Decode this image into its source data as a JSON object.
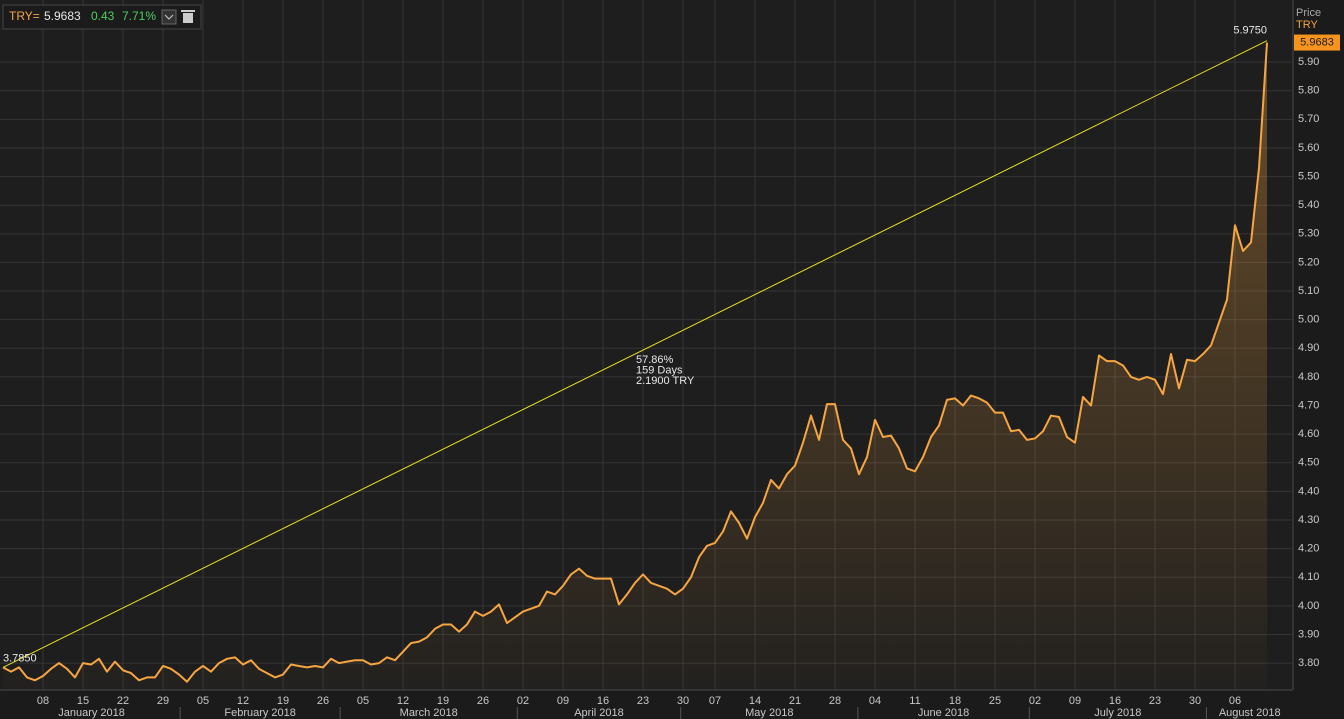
{
  "header": {
    "symbol": "TRY=",
    "last": "5.9683",
    "change": "0.43",
    "change_pct": "7.71%"
  },
  "chart_data": {
    "type": "line",
    "y_axis_title": "Price",
    "last_price_label": "5.9683",
    "categories": [
      null,
      null,
      null,
      null,
      null,
      "08",
      null,
      null,
      null,
      null,
      "15",
      null,
      null,
      null,
      null,
      "22",
      null,
      null,
      null,
      null,
      "29",
      null,
      null,
      null,
      null,
      "05",
      null,
      null,
      null,
      null,
      "12",
      null,
      null,
      null,
      null,
      "19",
      null,
      null,
      null,
      null,
      "26",
      null,
      null,
      null,
      null,
      "05",
      null,
      null,
      null,
      null,
      "12",
      null,
      null,
      null,
      null,
      "19",
      null,
      null,
      null,
      null,
      "26",
      null,
      null,
      null,
      null,
      "02",
      null,
      null,
      null,
      null,
      "09",
      null,
      null,
      null,
      null,
      "16",
      null,
      null,
      null,
      null,
      "23",
      null,
      null,
      null,
      null,
      "30",
      null,
      null,
      null,
      "07",
      null,
      null,
      null,
      null,
      "14",
      null,
      null,
      null,
      null,
      "21",
      null,
      null,
      null,
      null,
      "28",
      null,
      null,
      null,
      null,
      "04",
      null,
      null,
      null,
      null,
      "11",
      null,
      null,
      null,
      null,
      "18",
      null,
      null,
      null,
      null,
      "25",
      null,
      null,
      null,
      null,
      "02",
      null,
      null,
      null,
      null,
      "09",
      null,
      null,
      null,
      null,
      "16",
      null,
      null,
      null,
      null,
      "23",
      null,
      null,
      null,
      null,
      "30",
      null,
      null,
      null,
      null,
      "06",
      null,
      null,
      null,
      null
    ],
    "months": [
      "January 2018",
      "February 2018",
      "March 2018",
      "April 2018",
      "May 2018",
      "June 2018",
      "July 2018",
      "August 2018"
    ],
    "series": [
      {
        "name": "TRY",
        "color": "#f7a540",
        "values": [
          3.785,
          3.77,
          3.785,
          3.75,
          3.74,
          3.755,
          3.78,
          3.8,
          3.78,
          3.75,
          3.8,
          3.795,
          3.815,
          3.77,
          3.805,
          3.775,
          3.765,
          3.74,
          3.75,
          3.75,
          3.79,
          3.78,
          3.76,
          3.735,
          3.77,
          3.79,
          3.77,
          3.8,
          3.815,
          3.82,
          3.795,
          3.81,
          3.78,
          3.765,
          3.75,
          3.76,
          3.795,
          3.79,
          3.785,
          3.79,
          3.785,
          3.815,
          3.8,
          3.805,
          3.81,
          3.81,
          3.795,
          3.8,
          3.82,
          3.81,
          3.84,
          3.87,
          3.875,
          3.89,
          3.92,
          3.935,
          3.935,
          3.91,
          3.935,
          3.98,
          3.965,
          3.98,
          4.005,
          3.94,
          3.96,
          3.98,
          3.99,
          4.0,
          4.05,
          4.04,
          4.07,
          4.11,
          4.13,
          4.105,
          4.095,
          4.095,
          4.095,
          4.005,
          4.04,
          4.08,
          4.11,
          4.08,
          4.07,
          4.06,
          4.04,
          4.06,
          4.1,
          4.17,
          4.21,
          4.22,
          4.26,
          4.33,
          4.29,
          4.235,
          4.31,
          4.36,
          4.44,
          4.41,
          4.46,
          4.49,
          4.57,
          4.665,
          4.58,
          4.705,
          4.705,
          4.58,
          4.55,
          4.46,
          4.52,
          4.65,
          4.59,
          4.595,
          4.55,
          4.48,
          4.47,
          4.52,
          4.59,
          4.63,
          4.72,
          4.725,
          4.7,
          4.735,
          4.725,
          4.71,
          4.675,
          4.675,
          4.61,
          4.615,
          4.58,
          4.585,
          4.61,
          4.665,
          4.66,
          4.59,
          4.57,
          4.73,
          4.7,
          4.875,
          4.855,
          4.855,
          4.84,
          4.8,
          4.79,
          4.8,
          4.79,
          4.74,
          4.88,
          4.76,
          4.86,
          4.855,
          4.88,
          4.91,
          4.99,
          5.07,
          5.33,
          5.24,
          5.27,
          5.53,
          5.9683
        ]
      }
    ],
    "trendline": {
      "start": 3.785,
      "end": 5.975,
      "start_label": "3.7850",
      "end_label": "5.9750",
      "labels": [
        "57.86%",
        "159 Days",
        "2.1900 TRY"
      ],
      "color": "#e8e020"
    },
    "ylim": [
      3.706,
      6.117
    ],
    "yticks": [
      {
        "value": 3.8,
        "label": "3.80"
      },
      {
        "value": 3.9,
        "label": "3.90"
      },
      {
        "value": 4.0,
        "label": "4.00"
      },
      {
        "value": 4.1,
        "label": "4.10"
      },
      {
        "value": 4.2,
        "label": "4.20"
      },
      {
        "value": 4.3,
        "label": "4.30"
      },
      {
        "value": 4.4,
        "label": "4.40"
      },
      {
        "value": 4.5,
        "label": "4.50"
      },
      {
        "value": 4.6,
        "label": "4.60"
      },
      {
        "value": 4.7,
        "label": "4.70"
      },
      {
        "value": 4.8,
        "label": "4.80"
      },
      {
        "value": 4.9,
        "label": "4.90"
      },
      {
        "value": 5.0,
        "label": "5.00"
      },
      {
        "value": 5.1,
        "label": "5.10"
      },
      {
        "value": 5.2,
        "label": "5.20"
      },
      {
        "value": 5.3,
        "label": "5.30"
      },
      {
        "value": 5.4,
        "label": "5.40"
      },
      {
        "value": 5.5,
        "label": "5.50"
      },
      {
        "value": 5.6,
        "label": "5.60"
      },
      {
        "value": 5.7,
        "label": "5.70"
      },
      {
        "value": 5.8,
        "label": "5.80"
      },
      {
        "value": 5.9,
        "label": "5.90"
      }
    ],
    "grid": true
  }
}
